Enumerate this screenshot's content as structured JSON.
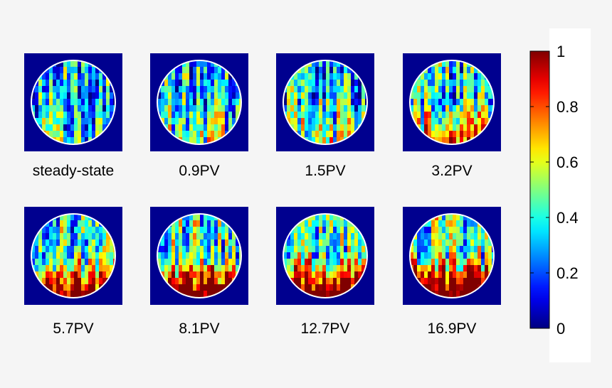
{
  "chart_data": {
    "type": "heatmap",
    "title": "",
    "panels": [
      {
        "label": "steady-state",
        "bottom_saturation": 0.1
      },
      {
        "label": "0.9PV",
        "bottom_saturation": 0.2
      },
      {
        "label": "1.5PV",
        "bottom_saturation": 0.3
      },
      {
        "label": "3.2PV",
        "bottom_saturation": 0.55
      },
      {
        "label": "5.7PV",
        "bottom_saturation": 0.8
      },
      {
        "label": "8.1PV",
        "bottom_saturation": 0.92
      },
      {
        "label": "12.7PV",
        "bottom_saturation": 0.95
      },
      {
        "label": "16.9PV",
        "bottom_saturation": 0.97
      }
    ],
    "colorbar": {
      "colormap": "jet",
      "range": [
        0,
        1
      ],
      "ticks": [
        "0",
        "0.2",
        "0.4",
        "0.6",
        "0.8",
        "1"
      ]
    }
  },
  "colors": {
    "background": "#f5f5f5",
    "panel_background": "#00008f",
    "circle_outline": "#ffffff"
  }
}
